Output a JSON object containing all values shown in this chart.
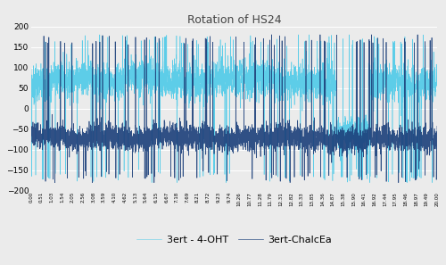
{
  "title": "Rotation of HS24",
  "ylim": [
    -200,
    200
  ],
  "yticks": [
    -200,
    -150,
    -100,
    -50,
    0,
    50,
    100,
    150,
    200
  ],
  "n_points": 4000,
  "color_oht": "#5DCDE8",
  "color_chalcea": "#1B3F7A",
  "legend_oht": "3ert - 4-OHT",
  "legend_chalcea": "3ert-ChalcEa",
  "bg_color": "#EBEBEB",
  "title_fontsize": 9,
  "legend_fontsize": 8,
  "linewidth_oht": 0.4,
  "linewidth_chalcea": 0.5,
  "seed_oht": 7,
  "seed_chalcea": 13,
  "n_xticks": 40
}
